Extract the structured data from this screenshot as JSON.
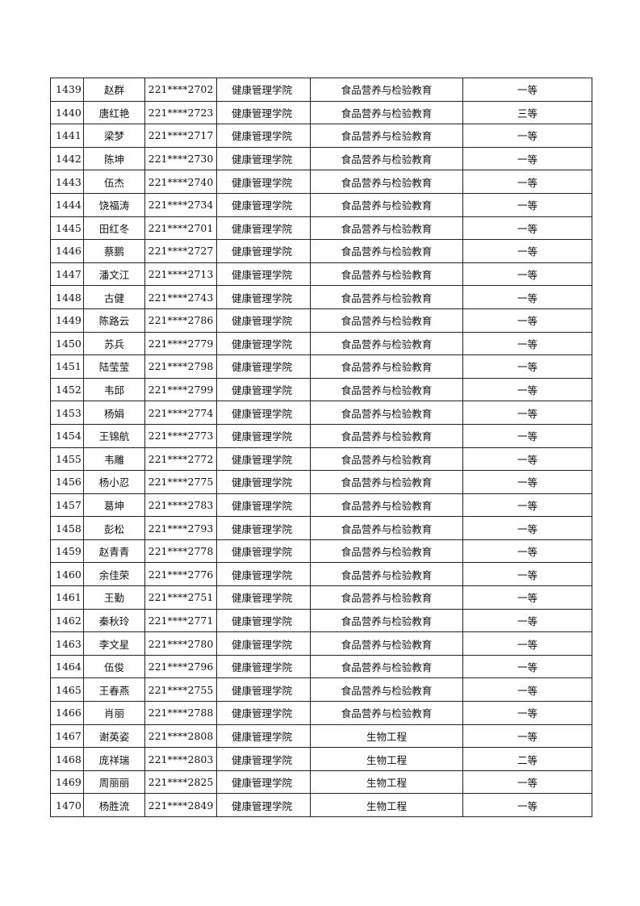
{
  "rows": [
    [
      "1439",
      "赵群",
      "221****2702",
      "健康管理学院",
      "食品营养与检验教育",
      "一等"
    ],
    [
      "1440",
      "唐红艳",
      "221****2723",
      "健康管理学院",
      "食品营养与检验教育",
      "三等"
    ],
    [
      "1441",
      "梁梦",
      "221****2717",
      "健康管理学院",
      "食品营养与检验教育",
      "一等"
    ],
    [
      "1442",
      "陈坤",
      "221****2730",
      "健康管理学院",
      "食品营养与检验教育",
      "一等"
    ],
    [
      "1443",
      "伍杰",
      "221****2740",
      "健康管理学院",
      "食品营养与检验教育",
      "一等"
    ],
    [
      "1444",
      "饶福涛",
      "221****2734",
      "健康管理学院",
      "食品营养与检验教育",
      "一等"
    ],
    [
      "1445",
      "田红冬",
      "221****2701",
      "健康管理学院",
      "食品营养与检验教育",
      "一等"
    ],
    [
      "1446",
      "蔡鹏",
      "221****2727",
      "健康管理学院",
      "食品营养与检验教育",
      "一等"
    ],
    [
      "1447",
      "潘文江",
      "221****2713",
      "健康管理学院",
      "食品营养与检验教育",
      "一等"
    ],
    [
      "1448",
      "古健",
      "221****2743",
      "健康管理学院",
      "食品营养与检验教育",
      "一等"
    ],
    [
      "1449",
      "陈路云",
      "221****2786",
      "健康管理学院",
      "食品营养与检验教育",
      "一等"
    ],
    [
      "1450",
      "苏兵",
      "221****2779",
      "健康管理学院",
      "食品营养与检验教育",
      "一等"
    ],
    [
      "1451",
      "陆莹莹",
      "221****2798",
      "健康管理学院",
      "食品营养与检验教育",
      "一等"
    ],
    [
      "1452",
      "韦邱",
      "221****2799",
      "健康管理学院",
      "食品营养与检验教育",
      "一等"
    ],
    [
      "1453",
      "杨娟",
      "221****2774",
      "健康管理学院",
      "食品营养与检验教育",
      "一等"
    ],
    [
      "1454",
      "王锦航",
      "221****2773",
      "健康管理学院",
      "食品营养与检验教育",
      "一等"
    ],
    [
      "1455",
      "韦雕",
      "221****2772",
      "健康管理学院",
      "食品营养与检验教育",
      "一等"
    ],
    [
      "1456",
      "杨小忍",
      "221****2775",
      "健康管理学院",
      "食品营养与检验教育",
      "一等"
    ],
    [
      "1457",
      "葛坤",
      "221****2783",
      "健康管理学院",
      "食品营养与检验教育",
      "一等"
    ],
    [
      "1458",
      "彭松",
      "221****2793",
      "健康管理学院",
      "食品营养与检验教育",
      "一等"
    ],
    [
      "1459",
      "赵青青",
      "221****2778",
      "健康管理学院",
      "食品营养与检验教育",
      "一等"
    ],
    [
      "1460",
      "余佳荣",
      "221****2776",
      "健康管理学院",
      "食品营养与检验教育",
      "一等"
    ],
    [
      "1461",
      "王勤",
      "221****2751",
      "健康管理学院",
      "食品营养与检验教育",
      "一等"
    ],
    [
      "1462",
      "秦秋玲",
      "221****2771",
      "健康管理学院",
      "食品营养与检验教育",
      "一等"
    ],
    [
      "1463",
      "李文星",
      "221****2780",
      "健康管理学院",
      "食品营养与检验教育",
      "一等"
    ],
    [
      "1464",
      "伍俊",
      "221****2796",
      "健康管理学院",
      "食品营养与检验教育",
      "一等"
    ],
    [
      "1465",
      "王春燕",
      "221****2755",
      "健康管理学院",
      "食品营养与检验教育",
      "一等"
    ],
    [
      "1466",
      "肖丽",
      "221****2788",
      "健康管理学院",
      "食品营养与检验教育",
      "一等"
    ],
    [
      "1467",
      "谢英姿",
      "221****2808",
      "健康管理学院",
      "生物工程",
      "一等"
    ],
    [
      "1468",
      "庞祥瑞",
      "221****2803",
      "健康管理学院",
      "生物工程",
      "二等"
    ],
    [
      "1469",
      "周丽丽",
      "221****2825",
      "健康管理学院",
      "生物工程",
      "一等"
    ],
    [
      "1470",
      "杨胜流",
      "221****2849",
      "健康管理学院",
      "生物工程",
      "一等"
    ]
  ]
}
